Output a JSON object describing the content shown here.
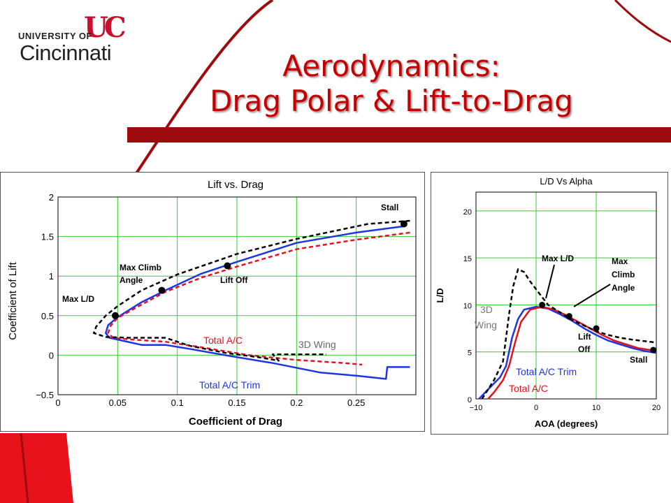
{
  "logo": {
    "line1": "UNIVERSITY OF",
    "line2": "Cincinnati",
    "mark": "UC"
  },
  "title": {
    "line1": "Aerodynamics:",
    "line2": "Drag Polar & Lift-to-Drag"
  },
  "colors": {
    "accent": "#9e0b0f",
    "title": "#c40000",
    "grid": "#33cc33",
    "blue": "#1f35e0",
    "red": "#e8101e",
    "dark": "#000000"
  },
  "chart_data": [
    {
      "type": "line",
      "title": "Lift vs. Drag",
      "xlabel": "Coefficient of Drag",
      "ylabel": "Coefficient of Lift",
      "xlim": [
        0,
        0.3
      ],
      "ylim": [
        -0.5,
        2
      ],
      "xticks": [
        "0",
        "0.05",
        "0.1",
        "0.15",
        "0.2",
        "0.25"
      ],
      "yticks": [
        "−0.5",
        "0",
        "0.5",
        "1",
        "1.5",
        "2"
      ],
      "grid": true,
      "series": [
        {
          "name": "Total A/C Trim",
          "color": "#1f35e0",
          "style": "solid",
          "points": [
            [
              0.29,
              1.63
            ],
            [
              0.25,
              1.55
            ],
            [
              0.2,
              1.42
            ],
            [
              0.15,
              1.18
            ],
            [
              0.12,
              1.03
            ],
            [
              0.09,
              0.82
            ],
            [
              0.07,
              0.67
            ],
            [
              0.05,
              0.48
            ],
            [
              0.042,
              0.38
            ],
            [
              0.04,
              0.28
            ],
            [
              0.043,
              0.22
            ],
            [
              0.055,
              0.18
            ],
            [
              0.07,
              0.13
            ],
            [
              0.09,
              0.13
            ],
            [
              0.11,
              0.08
            ],
            [
              0.14,
              0.0
            ],
            [
              0.18,
              -0.1
            ],
            [
              0.22,
              -0.22
            ],
            [
              0.25,
              -0.26
            ],
            [
              0.275,
              -0.3
            ],
            [
              0.276,
              -0.15
            ],
            [
              0.295,
              -0.15
            ]
          ]
        },
        {
          "name": "Total A/C",
          "color": "#e8101e",
          "style": "dashed",
          "points": [
            [
              0.295,
              1.55
            ],
            [
              0.25,
              1.46
            ],
            [
              0.2,
              1.34
            ],
            [
              0.15,
              1.12
            ],
            [
              0.12,
              0.98
            ],
            [
              0.09,
              0.8
            ],
            [
              0.07,
              0.64
            ],
            [
              0.05,
              0.47
            ],
            [
              0.044,
              0.37
            ],
            [
              0.042,
              0.28
            ],
            [
              0.046,
              0.22
            ],
            [
              0.06,
              0.2
            ],
            [
              0.09,
              0.17
            ],
            [
              0.12,
              0.1
            ],
            [
              0.16,
              0.0
            ],
            [
              0.2,
              -0.06
            ],
            [
              0.24,
              -0.1
            ],
            [
              0.255,
              -0.12
            ]
          ]
        },
        {
          "name": "3D Wing",
          "color": "#000000",
          "style": "dashed",
          "points": [
            [
              0.295,
              1.7
            ],
            [
              0.26,
              1.66
            ],
            [
              0.2,
              1.47
            ],
            [
              0.15,
              1.28
            ],
            [
              0.1,
              1.02
            ],
            [
              0.07,
              0.82
            ],
            [
              0.05,
              0.62
            ],
            [
              0.04,
              0.5
            ],
            [
              0.032,
              0.36
            ],
            [
              0.03,
              0.28
            ],
            [
              0.04,
              0.23
            ],
            [
              0.06,
              0.22
            ],
            [
              0.09,
              0.22
            ],
            [
              0.11,
              0.12
            ],
            [
              0.14,
              0.03
            ],
            [
              0.17,
              -0.03
            ],
            [
              0.185,
              -0.07
            ],
            [
              0.18,
              0.01
            ],
            [
              0.225,
              0.01
            ]
          ]
        }
      ],
      "markers": [
        {
          "label": "Max L/D",
          "x": 0.048,
          "y": 0.5
        },
        {
          "label": "Max Climb Angle",
          "x": 0.087,
          "y": 0.82
        },
        {
          "label": "Lift Off",
          "x": 0.142,
          "y": 1.13
        },
        {
          "label": "Stall",
          "x": 0.29,
          "y": 1.66
        }
      ],
      "labels": {
        "total_ac": "Total A/C",
        "total_ac_trim": "Total A/C Trim",
        "wing3d": "3D Wing"
      }
    },
    {
      "type": "line",
      "title": "L/D Vs Alpha",
      "xlabel": "AOA (degrees)",
      "ylabel": "L/D",
      "xlim": [
        -10,
        20
      ],
      "ylim": [
        0,
        22
      ],
      "xticks": [
        "−10",
        "0",
        "10",
        "20"
      ],
      "yticks": [
        "0",
        "5",
        "10",
        "15",
        "20"
      ],
      "grid": true,
      "series": [
        {
          "name": "Total A/C Trim",
          "color": "#1f35e0",
          "style": "solid",
          "points": [
            [
              -9.5,
              0.0
            ],
            [
              -8,
              1.0
            ],
            [
              -6,
              2.3
            ],
            [
              -5,
              3.5
            ],
            [
              -4,
              6.5
            ],
            [
              -3,
              8.5
            ],
            [
              -2,
              9.5
            ],
            [
              0,
              9.8
            ],
            [
              2,
              9.6
            ],
            [
              4,
              9.0
            ],
            [
              6,
              8.3
            ],
            [
              8,
              7.5
            ],
            [
              10,
              6.8
            ],
            [
              12,
              6.2
            ],
            [
              14,
              5.8
            ],
            [
              16,
              5.4
            ],
            [
              18,
              5.1
            ],
            [
              20,
              4.9
            ]
          ]
        },
        {
          "name": "Total A/C",
          "color": "#e8101e",
          "style": "solid",
          "points": [
            [
              -8,
              0.0
            ],
            [
              -7,
              0.7
            ],
            [
              -5.5,
              2.0
            ],
            [
              -4.5,
              3.5
            ],
            [
              -3.5,
              6.0
            ],
            [
              -2.5,
              8.2
            ],
            [
              -1,
              9.5
            ],
            [
              1,
              9.8
            ],
            [
              3,
              9.5
            ],
            [
              5,
              8.9
            ],
            [
              7,
              8.2
            ],
            [
              9,
              7.5
            ],
            [
              11,
              6.8
            ],
            [
              13,
              6.2
            ],
            [
              15,
              5.8
            ],
            [
              17,
              5.4
            ],
            [
              20,
              5.1
            ]
          ]
        },
        {
          "name": "3D Wing",
          "color": "#000000",
          "style": "dashed",
          "points": [
            [
              -9,
              0.0
            ],
            [
              -7,
              2.0
            ],
            [
              -5.5,
              4.0
            ],
            [
              -4.5,
              9.0
            ],
            [
              -3.8,
              12.0
            ],
            [
              -3,
              13.8
            ],
            [
              -2,
              13.5
            ],
            [
              -1,
              12.5
            ],
            [
              2,
              10.0
            ],
            [
              4,
              9.2
            ],
            [
              6,
              8.4
            ],
            [
              8,
              7.8
            ],
            [
              10,
              7.2
            ],
            [
              12,
              6.8
            ],
            [
              14,
              6.5
            ],
            [
              16,
              6.3
            ],
            [
              20,
              6.0
            ]
          ]
        }
      ],
      "markers": [
        {
          "label": "Max L/D",
          "x": 1,
          "y": 10.0
        },
        {
          "label": "Max Climb Angle",
          "x": 5.5,
          "y": 8.8
        },
        {
          "label": "Lift Off",
          "x": 10,
          "y": 7.5
        },
        {
          "label": "Stall",
          "x": 19.5,
          "y": 5.2
        }
      ],
      "labels": {
        "total_ac": "Total A/C",
        "total_ac_trim": "Total A/C Trim",
        "wing3d_line1": "3D",
        "wing3d_line2": "Wing",
        "maxclimb_line1": "Max",
        "maxclimb_line2": "Climb",
        "maxclimb_line3": "Angle",
        "liftoff_line1": "Lift",
        "liftoff_line2": "Off"
      }
    }
  ]
}
